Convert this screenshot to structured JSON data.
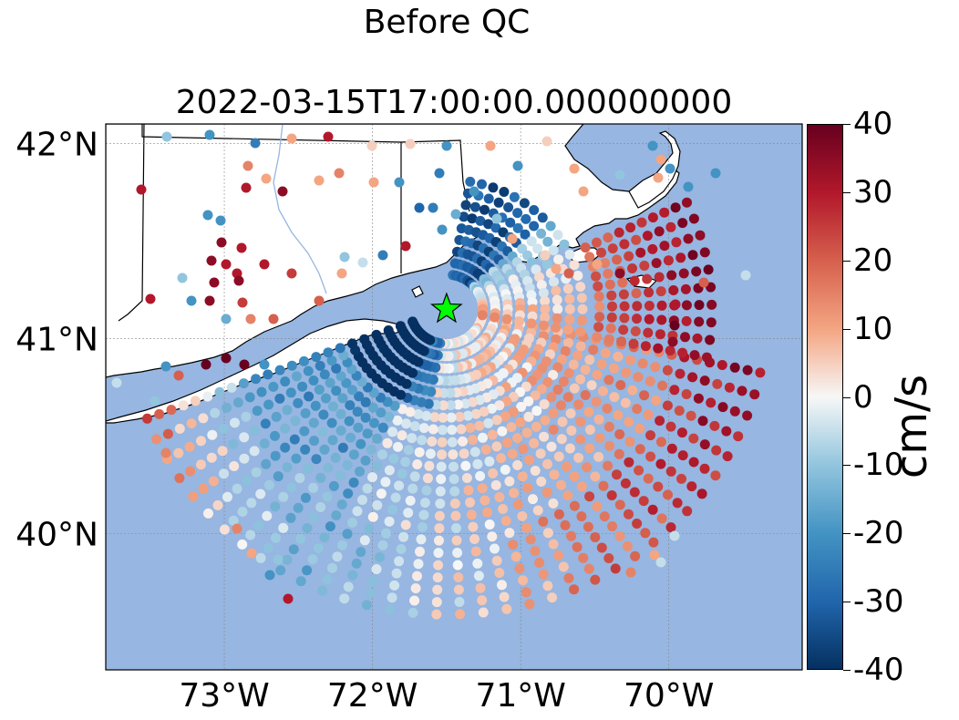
{
  "suptitle": "Before QC",
  "title": "2022-03-15T17:00:00.000000000",
  "axes": {
    "lon_ticks": [
      "73°W",
      "72°W",
      "71°W",
      "70°W"
    ],
    "lat_ticks": [
      "42°N",
      "41°N",
      "40°N"
    ],
    "lon_range": [
      -73.8,
      -69.1
    ],
    "lat_range": [
      39.3,
      42.1
    ]
  },
  "colorbar": {
    "label": "cm/s",
    "ticks": [
      "40",
      "30",
      "20",
      "10",
      "0",
      "-10",
      "-20",
      "-30",
      "-40"
    ],
    "range": [
      -40,
      40
    ],
    "colormap": "RdBu_r"
  },
  "site_marker": {
    "lon": -71.5,
    "lat": 41.15,
    "color": "#00ff00",
    "icon": "star-icon"
  },
  "colors": {
    "ocean": "#97b6e1",
    "land": "#ffffff",
    "river": "#97b6e1"
  }
}
